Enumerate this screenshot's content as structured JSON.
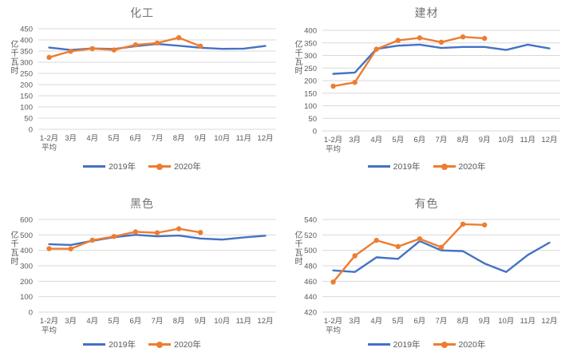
{
  "page": {
    "background": "#ffffff"
  },
  "axis": {
    "ylabel_chars": "亿千瓦时",
    "grid_color": "#d9d9d9",
    "tick_color": "#595959",
    "title_color": "#737373"
  },
  "chart_data": [
    {
      "type": "line",
      "title": "化工",
      "ylabel": "亿千瓦时",
      "categories": [
        "1-2月\n平均",
        "3月",
        "4月",
        "5月",
        "6月",
        "7月",
        "8月",
        "9月",
        "10月",
        "11月",
        "12月"
      ],
      "ylim": [
        0,
        450
      ],
      "ytick_step": 50,
      "grid": true,
      "legend_position": "bottom",
      "series": [
        {
          "name": "2019年",
          "color": "#4472C4",
          "markers": false,
          "values": [
            366,
            355,
            362,
            359,
            372,
            382,
            374,
            365,
            360,
            361,
            373
          ]
        },
        {
          "name": "2020年",
          "color": "#ED7D31",
          "markers": true,
          "values": [
            322,
            349,
            361,
            355,
            378,
            386,
            410,
            372
          ]
        }
      ]
    },
    {
      "type": "line",
      "title": "建材",
      "ylabel": "亿千瓦时",
      "categories": [
        "1-2月\n平均",
        "3月",
        "4月",
        "5月",
        "6月",
        "7月",
        "8月",
        "9月",
        "10月",
        "11月",
        "12月"
      ],
      "ylim": [
        0,
        400
      ],
      "ytick_step": 50,
      "grid": true,
      "legend_position": "bottom",
      "series": [
        {
          "name": "2019年",
          "color": "#4472C4",
          "markers": false,
          "values": [
            227,
            232,
            326,
            339,
            343,
            330,
            334,
            334,
            322,
            343,
            328
          ]
        },
        {
          "name": "2020年",
          "color": "#ED7D31",
          "markers": true,
          "values": [
            178,
            193,
            325,
            360,
            370,
            353,
            374,
            368
          ]
        }
      ]
    },
    {
      "type": "line",
      "title": "黑色",
      "ylabel": "亿千瓦时",
      "categories": [
        "1-2月\n平均",
        "3月",
        "4月",
        "5月",
        "6月",
        "7月",
        "8月",
        "9月",
        "10月",
        "11月",
        "12月"
      ],
      "ylim": [
        0,
        600
      ],
      "ytick_step": 100,
      "grid": true,
      "legend_position": "bottom",
      "series": [
        {
          "name": "2019年",
          "color": "#4472C4",
          "markers": false,
          "values": [
            440,
            435,
            462,
            485,
            501,
            491,
            496,
            477,
            470,
            484,
            495
          ]
        },
        {
          "name": "2020年",
          "color": "#ED7D31",
          "markers": true,
          "values": [
            411,
            410,
            466,
            490,
            520,
            514,
            540,
            516
          ]
        }
      ]
    },
    {
      "type": "line",
      "title": "有色",
      "ylabel": "亿千瓦时",
      "categories": [
        "1-2月\n平均",
        "3月",
        "4月",
        "5月",
        "6月",
        "7月",
        "8月",
        "9月",
        "10月",
        "11月",
        "12月"
      ],
      "ylim": [
        420,
        540
      ],
      "ytick_step": 20,
      "grid": true,
      "legend_position": "bottom",
      "series": [
        {
          "name": "2019年",
          "color": "#4472C4",
          "markers": false,
          "values": [
            474,
            472,
            491,
            489,
            512,
            500,
            499,
            483,
            472,
            494,
            510
          ]
        },
        {
          "name": "2020年",
          "color": "#ED7D31",
          "markers": true,
          "values": [
            459,
            493,
            513,
            505,
            515,
            504,
            534,
            533
          ]
        }
      ]
    }
  ]
}
